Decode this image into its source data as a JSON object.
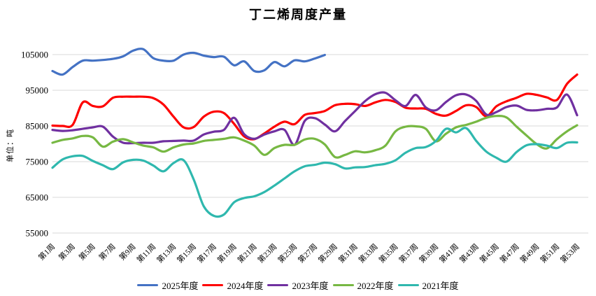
{
  "chart_data": {
    "type": "line",
    "title": "丁二烯周度产量",
    "ylabel": "单位：吨",
    "xlabel": "",
    "ylim": [
      55000,
      105000
    ],
    "y_tick_labels": [
      "105000",
      "95000",
      "85000",
      "75000",
      "65000",
      "55000"
    ],
    "x_tick_labels": [
      "第1周",
      "第3周",
      "第5周",
      "第7周",
      "第9周",
      "第11周",
      "第13周",
      "第15周",
      "第17周",
      "第19周",
      "第21周",
      "第23周",
      "第25周",
      "第27周",
      "第29周",
      "第31周",
      "第33周",
      "第35周",
      "第37周",
      "第39周",
      "第41周",
      "第43周",
      "第45周",
      "第47周",
      "第49周",
      "第51周",
      "第53周"
    ],
    "x_tick_weeks": [
      1,
      3,
      5,
      7,
      9,
      11,
      13,
      15,
      17,
      19,
      21,
      23,
      25,
      27,
      29,
      31,
      33,
      35,
      37,
      39,
      41,
      43,
      45,
      47,
      49,
      51,
      53
    ],
    "x_total_weeks": 53,
    "grid": true,
    "grid_color": "#d9d9d9",
    "background_color": "#ffffff",
    "legend_position": "bottom",
    "series": [
      {
        "name": "2025年度",
        "color": "#4472c4",
        "start_week": 1,
        "values": [
          100400,
          99400,
          101500,
          103300,
          103300,
          103500,
          103800,
          104500,
          106100,
          106500,
          104000,
          103300,
          103300,
          105000,
          105500,
          104700,
          104300,
          104400,
          102000,
          103100,
          100400,
          100600,
          102900,
          101700,
          103400,
          103100,
          103900,
          104900
        ]
      },
      {
        "name": "2024年度",
        "color": "#fe0000",
        "start_week": 1,
        "values": [
          85100,
          85000,
          85300,
          91600,
          90600,
          90500,
          92900,
          93200,
          93200,
          93200,
          92800,
          91000,
          87600,
          84600,
          84700,
          87600,
          89000,
          88600,
          85600,
          82100,
          81300,
          82900,
          84800,
          86200,
          85500,
          88100,
          88600,
          89200,
          90800,
          91200,
          91100,
          90600,
          91600,
          92300,
          91700,
          90100,
          89900,
          89800,
          88400,
          87900,
          89200,
          90800,
          90300,
          87700,
          90500,
          91900,
          92900,
          94000,
          93700,
          93000,
          92300,
          96800,
          99400
        ]
      },
      {
        "name": "2023年度",
        "color": "#7030a0",
        "start_week": 1,
        "values": [
          83900,
          83600,
          83800,
          84200,
          84600,
          84800,
          82000,
          80300,
          80200,
          80300,
          80300,
          80700,
          80800,
          80900,
          80900,
          82600,
          83400,
          83900,
          87300,
          82700,
          81400,
          82600,
          83500,
          83900,
          79700,
          86400,
          87200,
          85400,
          83500,
          86400,
          89200,
          92000,
          93900,
          94300,
          92200,
          90600,
          93700,
          90200,
          89400,
          91700,
          93600,
          93800,
          92000,
          88200,
          88900,
          90300,
          90700,
          89500,
          89400,
          89800,
          90200,
          93800,
          88000
        ]
      },
      {
        "name": "2022年度",
        "color": "#77b843",
        "start_week": 1,
        "values": [
          80300,
          81100,
          81500,
          82200,
          81800,
          79200,
          80600,
          81300,
          80400,
          79500,
          79000,
          77800,
          79000,
          79800,
          80100,
          80800,
          81100,
          81400,
          81800,
          80900,
          79500,
          76900,
          78800,
          79700,
          79700,
          81200,
          81400,
          79800,
          76300,
          76900,
          77900,
          77600,
          78200,
          79500,
          83500,
          84800,
          84900,
          84200,
          80700,
          82800,
          84600,
          85300,
          86200,
          87300,
          87800,
          87400,
          84800,
          82300,
          79900,
          78700,
          81300,
          83500,
          85200
        ]
      },
      {
        "name": "2021年度",
        "color": "#2fb8ae",
        "start_week": 1,
        "values": [
          73300,
          75600,
          76500,
          76600,
          75200,
          74000,
          72900,
          74800,
          75500,
          75300,
          73900,
          72300,
          74600,
          75400,
          70000,
          62500,
          59800,
          60200,
          63600,
          64800,
          65300,
          66500,
          68300,
          70300,
          72300,
          73700,
          74100,
          74700,
          74300,
          73100,
          73400,
          73500,
          74000,
          74400,
          75400,
          77500,
          78800,
          79100,
          80800,
          84200,
          83200,
          84400,
          80800,
          77800,
          76100,
          75000,
          77700,
          79600,
          79900,
          79500,
          78800,
          80300,
          80400
        ]
      }
    ]
  }
}
